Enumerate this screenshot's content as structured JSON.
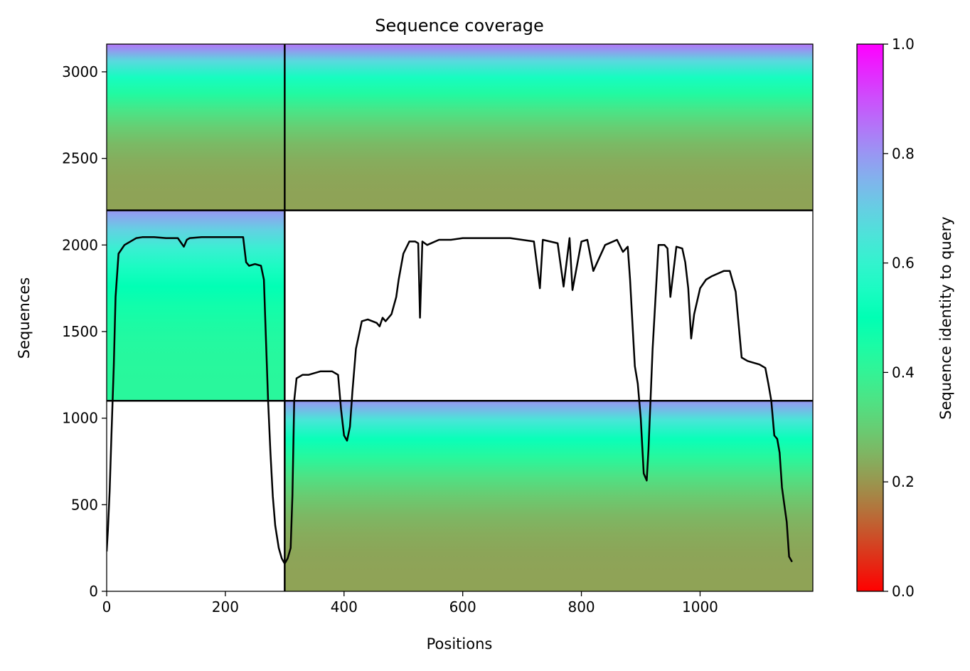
{
  "chart_data": {
    "type": "heatmap",
    "title": "Sequence coverage",
    "xlabel": "Positions",
    "ylabel": "Sequences",
    "xlim": [
      0,
      1190
    ],
    "ylim": [
      0,
      3160
    ],
    "xticks": [
      0,
      200,
      400,
      600,
      800,
      1000
    ],
    "yticks": [
      0,
      500,
      1000,
      1500,
      2000,
      2500,
      3000
    ],
    "grid": false,
    "colorbar": {
      "label": "Sequence identity to query",
      "colormap": "rainbow_r",
      "range": [
        0.0,
        1.0
      ],
      "ticks": [
        "0.0",
        "0.2",
        "0.4",
        "0.6",
        "0.8",
        "1.0"
      ]
    },
    "boundaries": {
      "vertical_x": [
        300
      ],
      "horizontal_y": [
        1100,
        2200
      ]
    },
    "blocks": [
      {
        "x": [
          0,
          300
        ],
        "y": [
          2200,
          3160
        ],
        "identity_bottom": 0.22,
        "identity_top": 0.85
      },
      {
        "x": [
          300,
          1190
        ],
        "y": [
          2200,
          3160
        ],
        "identity_bottom": 0.22,
        "identity_top": 0.85
      },
      {
        "x": [
          0,
          300
        ],
        "y": [
          1100,
          2200
        ],
        "identity_bottom": 0.42,
        "identity_top": 0.8
      },
      {
        "x": [
          300,
          1190
        ],
        "y": [
          0,
          1100
        ],
        "identity_bottom": 0.22,
        "identity_top": 0.8
      }
    ],
    "coverage_line": {
      "x": [
        0,
        2,
        5,
        8,
        12,
        15,
        20,
        30,
        40,
        50,
        60,
        80,
        100,
        120,
        130,
        135,
        140,
        160,
        180,
        200,
        230,
        235,
        240,
        250,
        260,
        265,
        268,
        272,
        276,
        280,
        284,
        290,
        295,
        300,
        305,
        310,
        313,
        316,
        320,
        330,
        340,
        360,
        380,
        390,
        395,
        400,
        405,
        410,
        414,
        420,
        430,
        440,
        455,
        460,
        465,
        470,
        480,
        488,
        492,
        500,
        510,
        520,
        525,
        528,
        532,
        540,
        560,
        580,
        600,
        640,
        680,
        720,
        730,
        735,
        760,
        770,
        780,
        785,
        800,
        810,
        820,
        840,
        860,
        870,
        878,
        882,
        886,
        890,
        895,
        900,
        905,
        910,
        913,
        920,
        930,
        940,
        945,
        950,
        960,
        970,
        975,
        980,
        985,
        990,
        1000,
        1010,
        1020,
        1040,
        1050,
        1055,
        1060,
        1070,
        1080,
        1090,
        1100,
        1110,
        1115,
        1120,
        1125,
        1130,
        1134,
        1138,
        1142,
        1146,
        1150,
        1155
      ],
      "y": [
        230,
        350,
        580,
        900,
        1300,
        1700,
        1950,
        2000,
        2020,
        2040,
        2045,
        2045,
        2040,
        2040,
        1990,
        2030,
        2040,
        2045,
        2045,
        2045,
        2045,
        1900,
        1880,
        1890,
        1880,
        1800,
        1500,
        1100,
        800,
        550,
        380,
        250,
        190,
        160,
        190,
        250,
        550,
        1100,
        1230,
        1250,
        1250,
        1270,
        1270,
        1250,
        1050,
        900,
        870,
        950,
        1150,
        1400,
        1560,
        1570,
        1550,
        1530,
        1580,
        1560,
        1600,
        1700,
        1800,
        1950,
        2020,
        2020,
        2010,
        1580,
        2020,
        2000,
        2030,
        2030,
        2040,
        2040,
        2040,
        2020,
        1750,
        2030,
        2010,
        1760,
        2040,
        1740,
        2020,
        2030,
        1850,
        2000,
        2030,
        1960,
        1990,
        1800,
        1550,
        1300,
        1200,
        1000,
        680,
        640,
        820,
        1400,
        2000,
        2000,
        1980,
        1700,
        1990,
        1980,
        1900,
        1750,
        1460,
        1600,
        1750,
        1800,
        1820,
        1850,
        1850,
        1790,
        1730,
        1350,
        1330,
        1320,
        1310,
        1290,
        1200,
        1100,
        900,
        880,
        800,
        600,
        500,
        400,
        200,
        170
      ]
    }
  }
}
